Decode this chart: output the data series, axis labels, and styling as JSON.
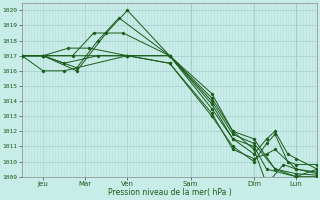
{
  "title": "",
  "xlabel": "Pression niveau de la mer( hPa )",
  "ylim": [
    1009,
    1020.5
  ],
  "xlim": [
    0,
    7
  ],
  "yticks": [
    1009,
    1010,
    1011,
    1012,
    1013,
    1014,
    1015,
    1016,
    1017,
    1018,
    1019,
    1020
  ],
  "xtick_labels": [
    "Jeu",
    "Mar",
    "Ven",
    "Sam",
    "Dim",
    "Lun"
  ],
  "xtick_positions": [
    0.5,
    1.5,
    2.5,
    4.0,
    5.5,
    6.5
  ],
  "bg_color": "#c8ece8",
  "line_color": "#1a5c1a",
  "grid_major_color": "#a8d4ce",
  "grid_minor_color": "#b8dcd8",
  "series": [
    [
      0.0,
      1017.0,
      0.5,
      1017.0,
      1.3,
      1016.0,
      2.0,
      1018.5,
      2.5,
      1020.0,
      3.5,
      1017.0,
      4.5,
      1014.5,
      5.0,
      1012.0,
      5.5,
      1011.5,
      6.0,
      1009.5,
      6.5,
      1009.0,
      7.0,
      1009.0
    ],
    [
      0.0,
      1017.0,
      0.5,
      1017.0,
      1.3,
      1016.2,
      1.8,
      1018.0,
      2.3,
      1019.5,
      3.5,
      1017.0,
      4.5,
      1014.0,
      5.0,
      1011.8,
      5.5,
      1011.2,
      6.0,
      1009.5,
      6.5,
      1009.2,
      7.0,
      1009.1
    ],
    [
      0.0,
      1017.0,
      0.5,
      1017.0,
      1.2,
      1017.0,
      1.7,
      1018.5,
      2.4,
      1018.5,
      3.5,
      1017.0,
      4.5,
      1014.2,
      5.0,
      1012.0,
      5.5,
      1010.8,
      5.8,
      1008.5,
      6.2,
      1009.8,
      6.5,
      1009.5,
      7.0,
      1009.3
    ],
    [
      0.0,
      1017.0,
      0.5,
      1017.0,
      1.1,
      1017.5,
      1.6,
      1017.5,
      2.5,
      1017.0,
      3.5,
      1017.0,
      4.5,
      1013.5,
      5.0,
      1011.5,
      5.5,
      1010.5,
      5.8,
      1011.5,
      6.0,
      1012.0,
      6.3,
      1010.5,
      6.5,
      1010.2,
      7.0,
      1009.5
    ],
    [
      0.0,
      1017.0,
      0.5,
      1017.0,
      1.0,
      1016.5,
      1.8,
      1017.0,
      2.5,
      1017.0,
      3.5,
      1016.5,
      4.5,
      1013.0,
      5.0,
      1011.0,
      5.5,
      1010.0,
      5.8,
      1011.2,
      6.0,
      1011.8,
      6.3,
      1010.0,
      6.5,
      1009.8,
      7.0,
      1009.8
    ],
    [
      0.0,
      1017.0,
      0.5,
      1016.0,
      1.0,
      1016.0,
      2.5,
      1017.0,
      3.5,
      1016.5,
      4.5,
      1013.2,
      5.0,
      1010.8,
      5.5,
      1010.2,
      5.8,
      1010.5,
      6.0,
      1010.8,
      6.5,
      1009.5,
      7.0,
      1009.2
    ],
    [
      0.0,
      1017.0,
      2.5,
      1017.0,
      3.5,
      1017.0,
      4.5,
      1013.8,
      5.0,
      1011.5,
      5.5,
      1011.0,
      5.8,
      1009.5,
      6.5,
      1009.0,
      7.0,
      1009.5
    ]
  ]
}
